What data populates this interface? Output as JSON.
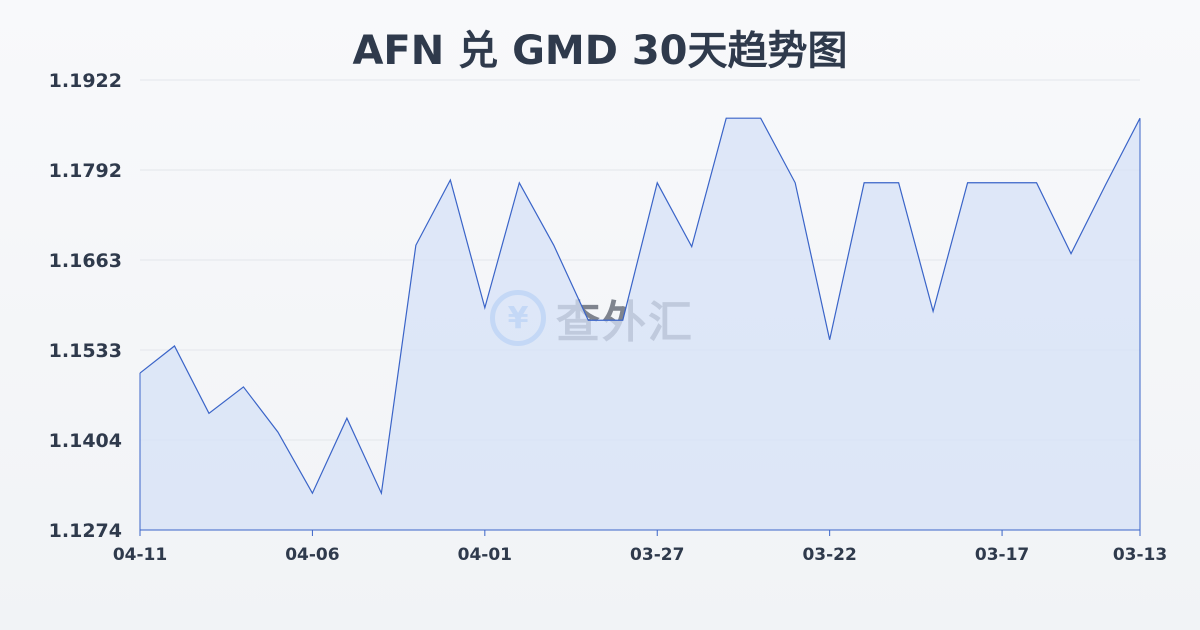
{
  "chart_data": {
    "type": "area",
    "title": "AFN 兑 GMD 30天趋势图",
    "x": [
      "04-11",
      "04-10",
      "04-09",
      "04-08",
      "04-07",
      "04-06",
      "04-05",
      "04-04",
      "04-03",
      "04-02",
      "04-01",
      "03-31",
      "03-30",
      "03-29",
      "03-28",
      "03-27",
      "03-26",
      "03-25",
      "03-24",
      "03-23",
      "03-22",
      "03-21",
      "03-20",
      "03-19",
      "03-18",
      "03-17",
      "03-16",
      "03-15",
      "03-14",
      "03-13"
    ],
    "x_tick_labels": [
      "04-11",
      "04-06",
      "04-01",
      "03-27",
      "03-22",
      "03-17",
      "03-13"
    ],
    "values": [
      1.15,
      1.1539,
      1.1442,
      1.148,
      1.1415,
      1.1327,
      1.1435,
      1.1327,
      1.1684,
      1.1778,
      1.1594,
      1.1774,
      1.1684,
      1.1576,
      1.1576,
      1.1774,
      1.1682,
      1.1867,
      1.1867,
      1.1774,
      1.1548,
      1.1774,
      1.1774,
      1.1589,
      1.1774,
      1.1774,
      1.1774,
      1.1672,
      1.1771,
      1.1867
    ],
    "y_tick_labels": [
      "1.1922",
      "1.1792",
      "1.1663",
      "1.1533",
      "1.1404",
      "1.1274"
    ],
    "ylim": [
      1.1274,
      1.1922
    ],
    "grid": true,
    "line_color": "#3a64c8",
    "fill_color": "#d6e2f7"
  },
  "watermark": {
    "symbol": "¥",
    "text": "查外汇"
  }
}
